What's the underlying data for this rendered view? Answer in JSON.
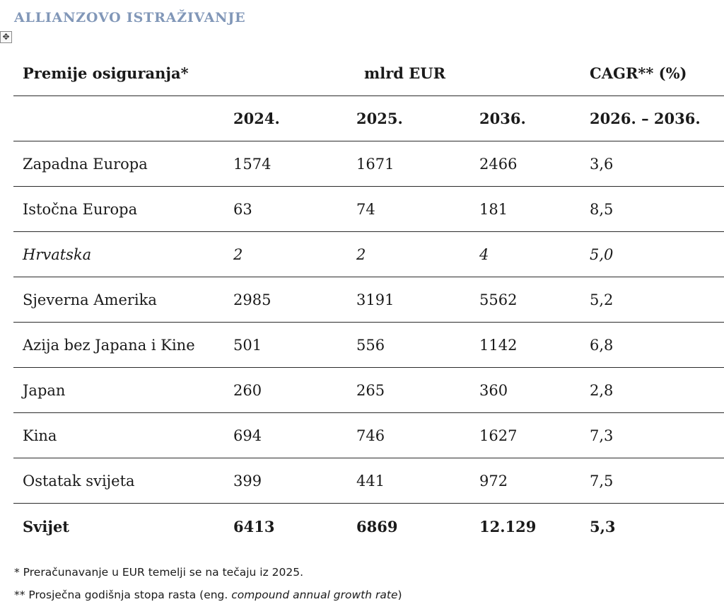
{
  "document": {
    "heading": "ALLIANZOVO ISTRAŽIVANJE",
    "move_handle_glyph": "✥"
  },
  "table": {
    "header_row_1": {
      "label": "Premije osiguranja*",
      "units": "mlrd EUR",
      "cagr": "CAGR** (%)"
    },
    "header_row_2": {
      "col1": "2024.",
      "col2": "2025.",
      "col3": "2036.",
      "col4": "2026. – 2036."
    },
    "rows": [
      {
        "region": "Zapadna Europa",
        "v2024": "1574",
        "v2025": "1671",
        "v2036": "2466",
        "cagr": "3,6"
      },
      {
        "region": "Istočna Europa",
        "v2024": "63",
        "v2025": "74",
        "v2036": "181",
        "cagr": "8,5"
      },
      {
        "region": "Hrvatska",
        "v2024": "2",
        "v2025": "2",
        "v2036": "4",
        "cagr": "5,0"
      },
      {
        "region": "Sjeverna Amerika",
        "v2024": "2985",
        "v2025": "3191",
        "v2036": "5562",
        "cagr": "5,2"
      },
      {
        "region": "Azija bez Japana i Kine",
        "v2024": "501",
        "v2025": "556",
        "v2036": "1142",
        "cagr": "6,8"
      },
      {
        "region": "Japan",
        "v2024": "260",
        "v2025": "265",
        "v2036": "360",
        "cagr": "2,8"
      },
      {
        "region": "Kina",
        "v2024": "694",
        "v2025": "746",
        "v2036": "1627",
        "cagr": "7,3"
      },
      {
        "region": "Ostatak svijeta",
        "v2024": "399",
        "v2025": "441",
        "v2036": "972",
        "cagr": "7,5"
      }
    ],
    "total": {
      "region": "Svijet",
      "v2024": "6413",
      "v2025": "6869",
      "v2036": "12.129",
      "cagr": "5,3"
    }
  },
  "footnotes": {
    "note1": "* Preračunavanje u EUR temelji se na tečaju iz 2025.",
    "note2_prefix": "** Prosječna godišnja stopa rasta (eng. ",
    "note2_italic": "compound annual growth rate",
    "note2_suffix": ")"
  }
}
